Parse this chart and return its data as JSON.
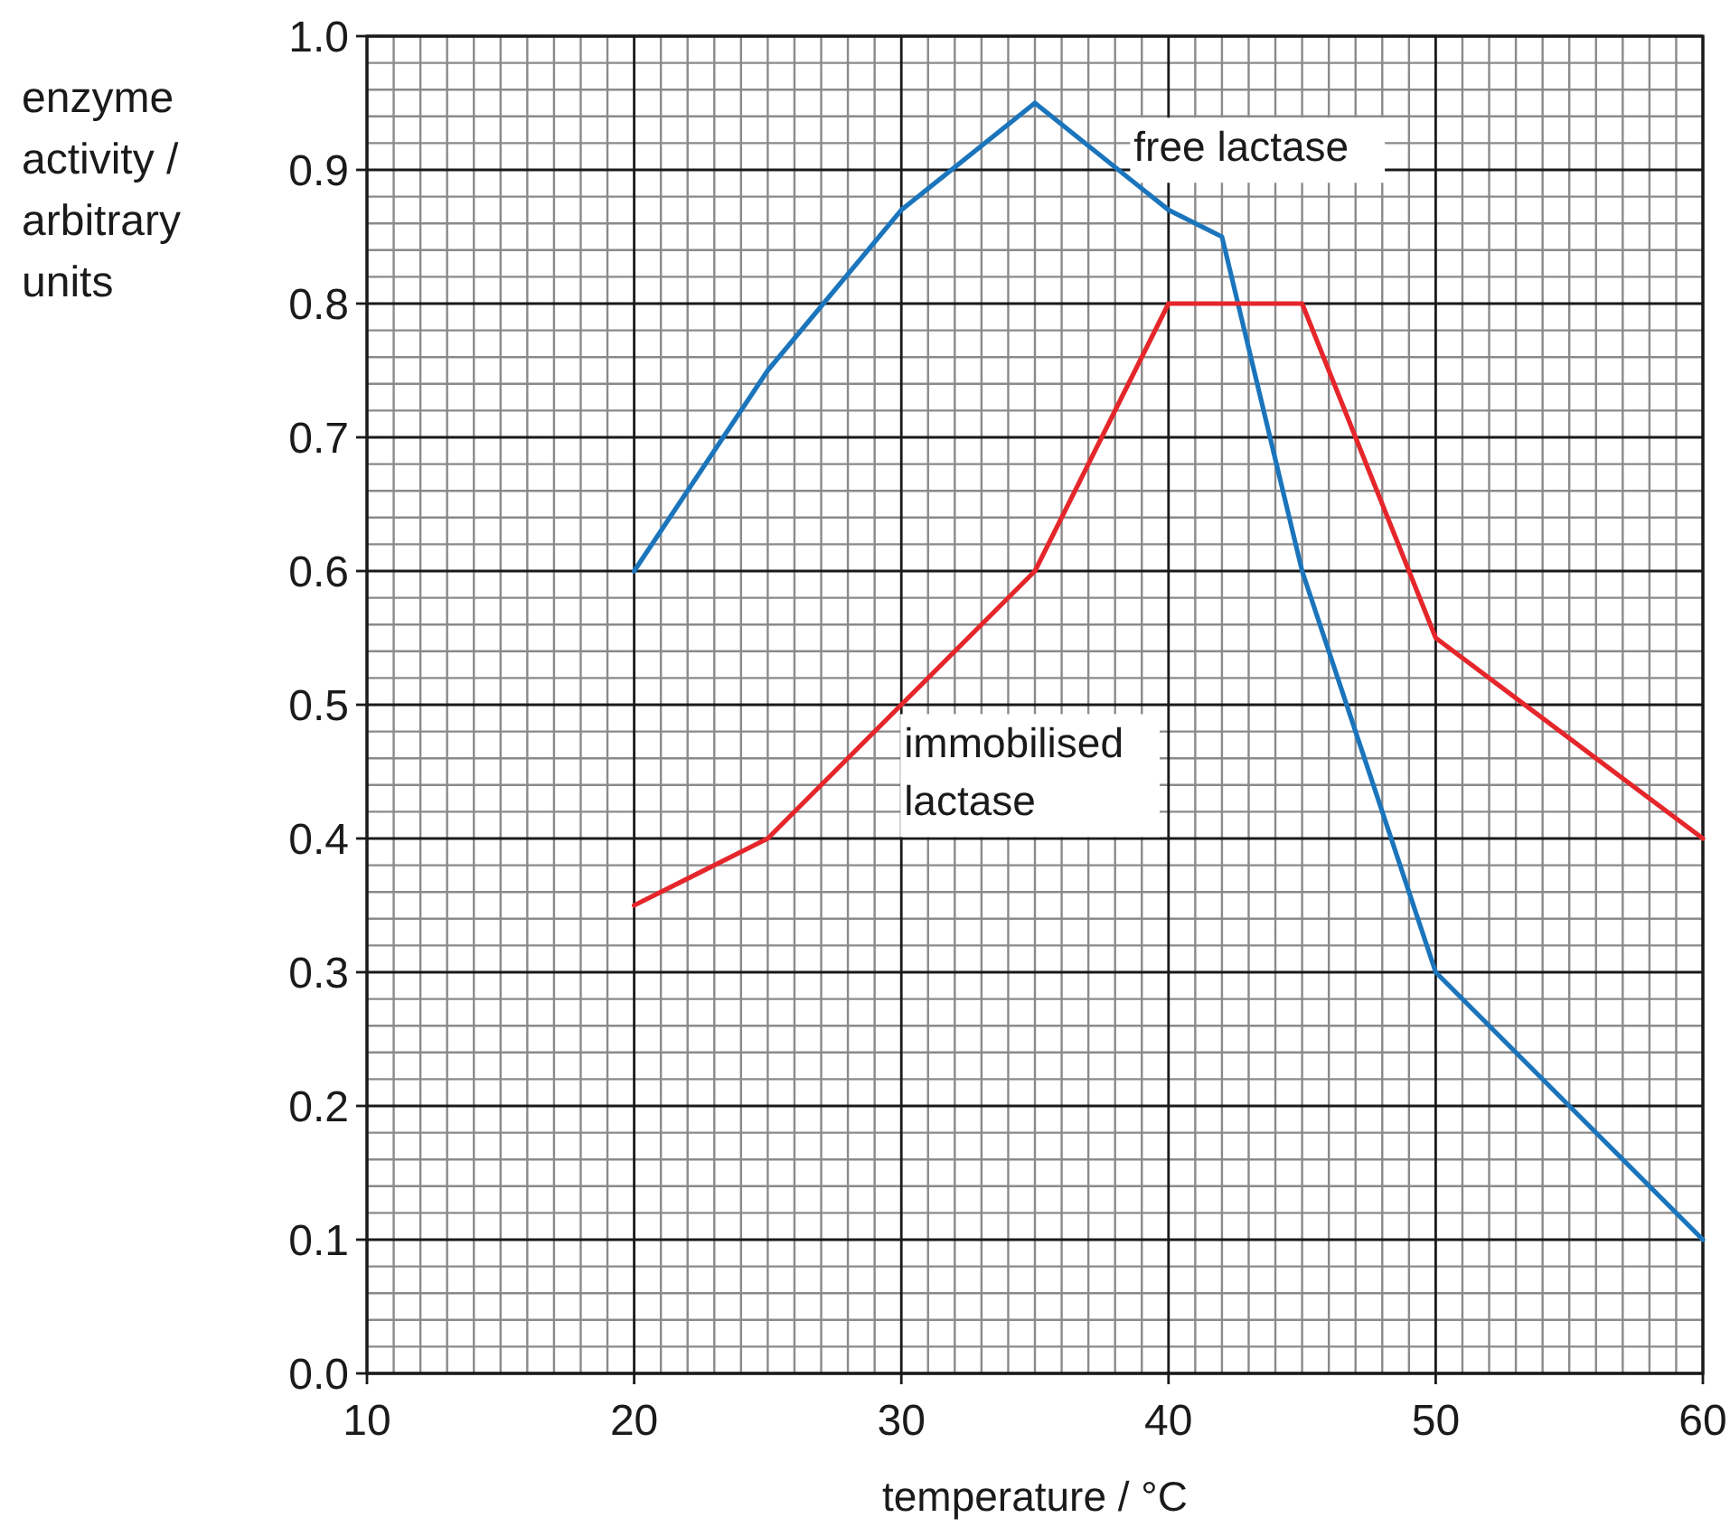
{
  "chart_data": {
    "type": "line",
    "xlabel": "temperature / °C",
    "ylabel": "enzyme activity / arbitrary units",
    "xlim": [
      10,
      60
    ],
    "ylim": [
      0,
      1
    ],
    "xticks": [
      10,
      20,
      30,
      40,
      50,
      60
    ],
    "yticks": [
      {
        "value": 0,
        "label": "0.0"
      },
      0.1,
      0.2,
      0.3,
      0.4,
      0.5,
      0.6,
      0.7,
      0.8,
      0.9,
      {
        "value": 1,
        "label": "1.0"
      }
    ],
    "grid": true,
    "series": [
      {
        "name": "free lactase",
        "color": "#1b75bc",
        "x": [
          20,
          25,
          30,
          35,
          40,
          42,
          45,
          50,
          60
        ],
        "values": [
          0.6,
          0.75,
          0.87,
          0.95,
          0.87,
          0.85,
          0.6,
          0.3,
          0.1
        ]
      },
      {
        "name": "immobilised lactase",
        "color": "#e5262b",
        "x": [
          20,
          25,
          35,
          40,
          45,
          50,
          60
        ],
        "values": [
          0.35,
          0.4,
          0.6,
          0.8,
          0.8,
          0.55,
          0.4
        ]
      }
    ]
  }
}
